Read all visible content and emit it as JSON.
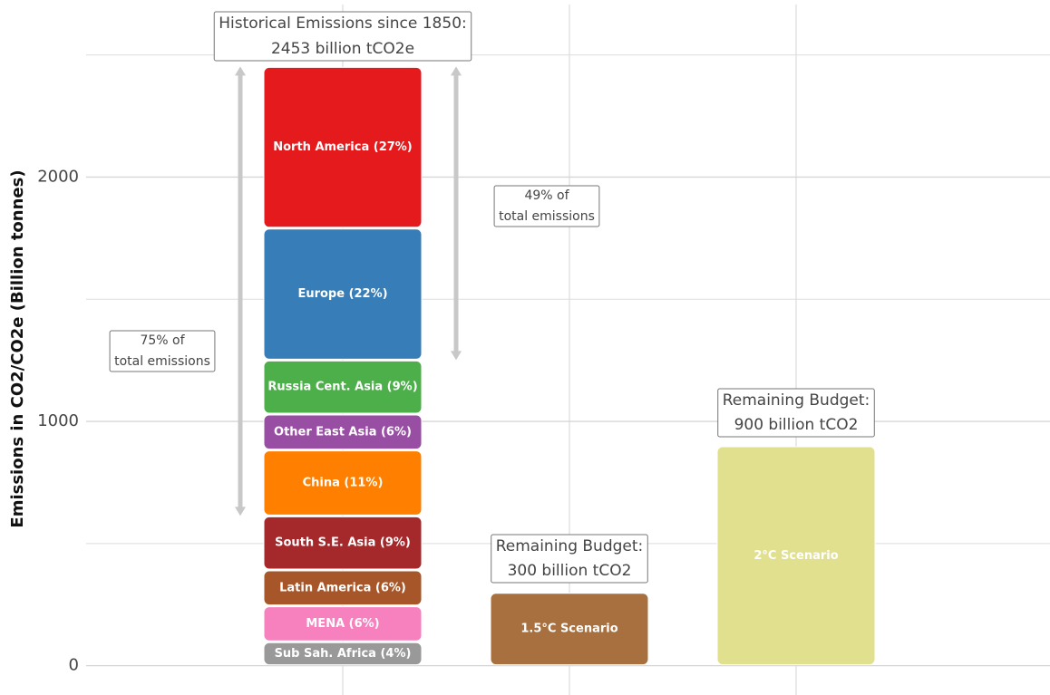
{
  "chart_data": {
    "type": "stacked-bar",
    "y_label": "Emissions in CO2/CO2e (Billion tonnes)",
    "categories": [
      null,
      null,
      null
    ],
    "series": [
      {
        "name": "Sub Sah. Africa (4%)",
        "color": "#999999",
        "values": [
          98,
          null,
          null
        ]
      },
      {
        "name": "MENA (6%)",
        "color": "#f781bf",
        "values": [
          147,
          null,
          null
        ]
      },
      {
        "name": "Latin America (6%)",
        "color": "#a65628",
        "values": [
          147,
          null,
          null
        ]
      },
      {
        "name": "South S.E. Asia (9%)",
        "color": "#a5282b",
        "values": [
          221,
          null,
          null
        ]
      },
      {
        "name": "China (11%)",
        "color": "#ff7f00",
        "values": [
          270,
          null,
          null
        ]
      },
      {
        "name": "Other East Asia (6%)",
        "color": "#984ea3",
        "values": [
          147,
          null,
          null
        ]
      },
      {
        "name": "Russia Cent. Asia (9%)",
        "color": "#4daf4a",
        "values": [
          221,
          null,
          null
        ]
      },
      {
        "name": "Europe (22%)",
        "color": "#377eb8",
        "values": [
          540,
          null,
          null
        ]
      },
      {
        "name": "North America (27%)",
        "color": "#e41a1c",
        "values": [
          662,
          null,
          null
        ]
      },
      {
        "name": "1.5°C Scenario",
        "color": "#a8703f",
        "values": [
          null,
          300,
          null
        ]
      },
      {
        "name": "2°C Scenario",
        "color": "#e0e08f",
        "values": [
          null,
          null,
          900
        ]
      }
    ],
    "annotations": [
      [
        "Historical Emissions since 1850:",
        "2453  billion tCO2e"
      ],
      [
        "75% of",
        "total emissions"
      ],
      [
        "49% of",
        "total emissions"
      ],
      [
        "Remaining Budget:",
        "300 billion tCO2"
      ],
      [
        "Remaining Budget:",
        "900 billion tCO2"
      ]
    ],
    "ylim": [
      -120,
      2725
    ],
    "yticks": [
      0,
      1000,
      2000
    ],
    "yminor": [
      500,
      1500,
      2500
    ],
    "grid": true
  }
}
